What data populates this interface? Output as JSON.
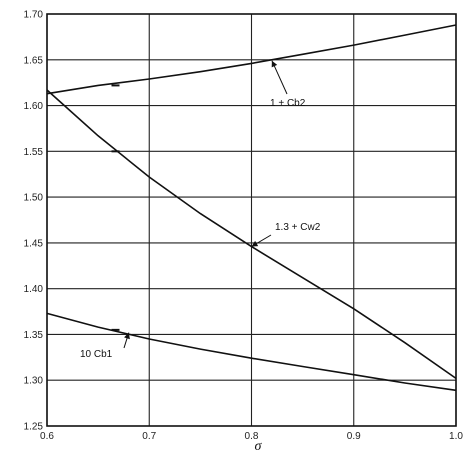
{
  "chart_data": {
    "type": "line",
    "xlabel": "σ",
    "ylabel": "",
    "xlim": [
      0.6,
      1.0
    ],
    "ylim": [
      1.25,
      1.7
    ],
    "xticks": [
      "0.6",
      "0.7",
      "0.8",
      "0.9",
      "1.0"
    ],
    "yticks": [
      "1.25",
      "1.30",
      "1.35",
      "1.40",
      "1.45",
      "1.50",
      "1.55",
      "1.60",
      "1.65",
      "1.70"
    ],
    "grid": true,
    "series": [
      {
        "name": "1 + Cb2",
        "x": [
          0.6,
          0.65,
          0.7,
          0.75,
          0.8,
          0.85,
          0.9,
          0.95,
          1.0
        ],
        "y": [
          1.613,
          1.622,
          1.629,
          1.637,
          1.646,
          1.656,
          1.666,
          1.677,
          1.688
        ]
      },
      {
        "name": "1.3 + Cw2",
        "x": [
          0.6,
          0.65,
          0.7,
          0.75,
          0.8,
          0.85,
          0.9,
          0.95,
          1.0
        ],
        "y": [
          1.617,
          1.567,
          1.522,
          1.482,
          1.446,
          1.412,
          1.378,
          1.341,
          1.302
        ]
      },
      {
        "name": "10 Cb1",
        "x": [
          0.6,
          0.65,
          0.7,
          0.75,
          0.8,
          0.85,
          0.9,
          0.95,
          1.0
        ],
        "y": [
          1.373,
          1.358,
          1.345,
          1.334,
          1.324,
          1.315,
          1.306,
          1.297,
          1.289
        ]
      }
    ],
    "markers": [
      {
        "series": "1 + Cb2",
        "x": 0.667,
        "y": 1.622
      },
      {
        "series": "1.3 + Cw2",
        "x": 0.667,
        "y": 1.55
      },
      {
        "series": "10 Cb1",
        "x": 0.667,
        "y": 1.355
      }
    ],
    "annotations": [
      {
        "text": "1 + Cb2",
        "target_x": 0.82,
        "target_y": 1.649
      },
      {
        "text": "1.3 + Cw2",
        "target_x": 0.8,
        "target_y": 1.446
      },
      {
        "text": "10 Cb1",
        "target_x": 0.68,
        "target_y": 1.352
      }
    ]
  }
}
